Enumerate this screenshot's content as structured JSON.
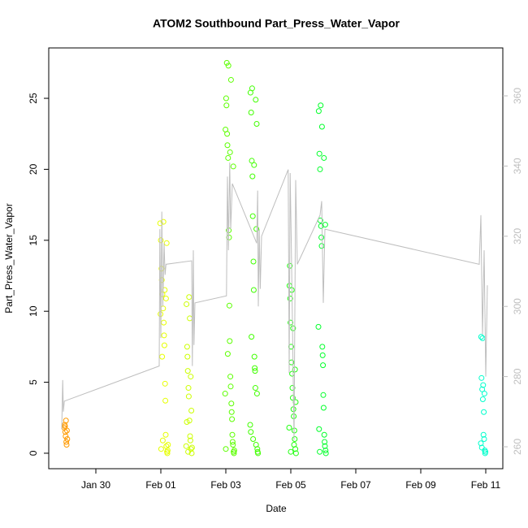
{
  "chart_data": {
    "type": "scatter",
    "title": "ATOM2 Southbound Part_Press_Water_Vapor",
    "x_label": "Date",
    "y_label": "Part_Press_Water_Vapor",
    "xlim": [
      28.55,
      42.525
    ],
    "xticks": [
      {
        "value": 30,
        "label": "Jan 30"
      },
      {
        "value": 32,
        "label": "Feb 01"
      },
      {
        "value": 34,
        "label": "Feb 03"
      },
      {
        "value": 36,
        "label": "Feb 05"
      },
      {
        "value": 38,
        "label": "Feb 07"
      },
      {
        "value": 40,
        "label": "Feb 09"
      },
      {
        "value": 42,
        "label": "Feb 11"
      }
    ],
    "ylim": [
      -1.09,
      28.55
    ],
    "yticks": [
      0,
      5,
      10,
      15,
      20,
      25
    ],
    "y2lim": [
      253.75,
      373.66
    ],
    "y2ticks": [
      260,
      280,
      300,
      320,
      340,
      360
    ],
    "y2_color": "#bebebe",
    "series": [
      {
        "color": "#ff9a00",
        "x": [
          29.03,
          29.04,
          29.05,
          29.06,
          29.07,
          29.08,
          29.09,
          29.1,
          29.11,
          29.12
        ],
        "values": [
          1.8,
          2.0,
          1.9,
          1.5,
          1.2,
          2.3,
          0.8,
          0.6,
          1.6,
          1.0
        ]
      },
      {
        "color": "#e6ff00",
        "x": [
          31.98,
          31.99,
          32.0,
          32.01,
          32.02,
          32.03,
          32.04,
          32.05,
          32.06,
          32.07,
          32.08,
          32.09,
          32.1,
          32.11,
          32.12,
          32.13,
          32.14,
          32.15,
          32.16,
          32.17,
          32.18,
          32.19,
          32.2,
          32.21,
          32.22
        ],
        "values": [
          16.2,
          9.8,
          15.0,
          0.3,
          13.0,
          12.2,
          6.8,
          11.2,
          0.9,
          10.2,
          16.3,
          9.2,
          8.3,
          7.6,
          11.5,
          4.9,
          3.7,
          1.3,
          10.9,
          0.5,
          14.8,
          0.1,
          0.0,
          0.2,
          0.6
        ]
      },
      {
        "color": "#ccff00",
        "x": [
          32.78,
          32.79,
          32.8,
          32.81,
          32.82,
          32.83,
          32.84,
          32.85,
          32.86,
          32.87,
          32.88,
          32.89,
          32.9,
          32.91,
          32.92,
          32.93,
          32.94,
          32.95,
          32.96
        ],
        "values": [
          0.5,
          10.5,
          2.2,
          7.5,
          6.8,
          5.8,
          0.1,
          4.6,
          4.0,
          11.0,
          2.3,
          9.5,
          1.2,
          0.9,
          5.4,
          0.3,
          3.0,
          0.0,
          0.4
        ]
      },
      {
        "color": "#5cff00",
        "x": [
          33.98,
          33.99,
          34.0,
          34.01,
          34.02,
          34.03,
          34.04,
          34.05,
          34.06,
          34.07,
          34.08,
          34.09,
          34.1,
          34.11,
          34.12,
          34.13,
          34.14,
          34.15,
          34.16,
          34.17,
          34.18,
          34.19,
          34.2,
          34.21,
          34.22,
          34.23,
          34.24,
          34.25,
          34.26
        ],
        "values": [
          4.2,
          22.8,
          0.3,
          25.0,
          24.5,
          27.5,
          22.5,
          21.7,
          7.0,
          20.8,
          27.3,
          15.7,
          15.2,
          10.4,
          7.9,
          21.2,
          5.4,
          4.7,
          26.3,
          3.5,
          2.9,
          2.4,
          1.3,
          0.8,
          0.6,
          20.2,
          0.1,
          0.0,
          0.2
        ]
      },
      {
        "color": "#40ff00",
        "x": [
          34.75,
          34.76,
          34.77,
          34.78,
          34.79,
          34.8,
          34.81,
          34.82,
          34.83,
          34.84,
          34.85,
          34.86,
          34.87,
          34.88,
          34.89,
          34.9,
          34.91,
          34.92,
          34.93,
          34.94,
          34.95,
          34.96,
          34.97,
          34.98,
          34.99
        ],
        "values": [
          2.0,
          25.4,
          1.5,
          24.0,
          8.2,
          20.6,
          25.7,
          19.5,
          16.7,
          1.0,
          13.5,
          11.5,
          20.3,
          6.8,
          6.0,
          5.8,
          4.6,
          24.9,
          0.6,
          15.8,
          23.2,
          4.2,
          0.3,
          0.1,
          0.0
        ]
      },
      {
        "color": "#22ff11",
        "x": [
          35.95,
          35.96,
          35.97,
          35.98,
          35.99,
          36.0,
          36.01,
          36.02,
          36.03,
          36.04,
          36.05,
          36.06,
          36.07,
          36.08,
          36.09,
          36.1,
          36.11,
          36.12,
          36.13,
          36.14,
          36.15,
          36.16
        ],
        "values": [
          1.8,
          11.8,
          13.2,
          10.9,
          9.2,
          0.1,
          7.5,
          6.4,
          11.5,
          5.6,
          4.6,
          3.9,
          8.8,
          3.1,
          2.6,
          0.6,
          1.6,
          1.0,
          5.9,
          0.3,
          3.6,
          0.0
        ]
      },
      {
        "color": "#00ff2a",
        "x": [
          36.85,
          36.86,
          36.87,
          36.88,
          36.89,
          36.9,
          36.91,
          36.92,
          36.93,
          36.94,
          36.95,
          36.96,
          36.97,
          36.98,
          36.99,
          37.0,
          37.01,
          37.02,
          37.03,
          37.04,
          37.05,
          37.06,
          37.07,
          37.08
        ],
        "values": [
          8.9,
          24.1,
          1.7,
          21.1,
          0.1,
          20.0,
          16.4,
          24.5,
          16.0,
          15.2,
          14.6,
          23.0,
          7.5,
          6.9,
          6.2,
          4.1,
          3.2,
          20.8,
          1.3,
          0.8,
          0.5,
          16.1,
          0.2,
          0.0
        ]
      },
      {
        "color": "#00ffcc",
        "x": [
          41.85,
          41.86,
          41.87,
          41.88,
          41.89,
          41.9,
          41.91,
          41.92,
          41.93,
          41.94,
          41.95,
          41.96,
          41.97,
          41.98,
          41.99
        ],
        "values": [
          0.7,
          8.2,
          5.3,
          0.4,
          4.5,
          8.1,
          3.8,
          4.8,
          1.3,
          2.9,
          1.0,
          4.2,
          0.2,
          0.0,
          0.1
        ]
      },
      {
        "color": "#bebebe",
        "axis": "y2",
        "x": [
          28.95,
          28.98,
          29.0,
          29.03,
          31.95,
          31.97,
          32.0,
          32.03,
          32.06,
          32.1,
          32.13,
          32.16,
          32.95,
          32.97,
          33.0,
          33.02,
          33.05,
          34.02,
          34.05,
          34.08,
          34.12,
          34.15,
          34.2,
          34.95,
          34.98,
          35.0,
          35.03,
          35.06,
          35.1,
          35.92,
          35.95,
          35.98,
          36.02,
          36.1,
          36.15,
          36.2,
          36.9,
          36.95,
          37.0,
          37.05,
          41.8,
          41.85,
          41.9,
          41.95,
          42.0,
          42.05
        ],
        "values": [
          265,
          279,
          270,
          273,
          283,
          322,
          291,
          327,
          300,
          318,
          309,
          312,
          313,
          283,
          316,
          289,
          301,
          303,
          337,
          316,
          341,
          322,
          335,
          318,
          333,
          300,
          322,
          305,
          320,
          339,
          281,
          338,
          315,
          262,
          336,
          312,
          326,
          330,
          301,
          322,
          312,
          326,
          292,
          316,
          280,
          306
        ]
      }
    ]
  }
}
